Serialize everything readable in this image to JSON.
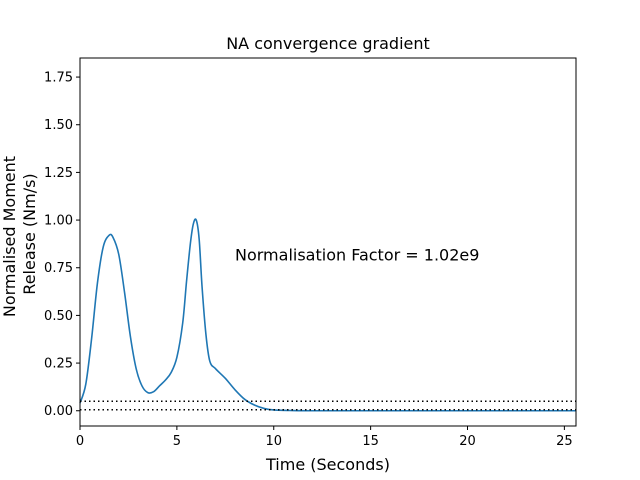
{
  "chart_data": {
    "type": "line",
    "title": "NA convergence gradient",
    "xlabel": "Time (Seconds)",
    "ylabel_lines": [
      "Normalised Moment",
      "Release (Nm/s)"
    ],
    "xlim": [
      0,
      25.6
    ],
    "ylim": [
      -0.08,
      1.85
    ],
    "xticks": [
      0,
      5,
      10,
      15,
      20,
      25
    ],
    "yticks": [
      0.0,
      0.25,
      0.5,
      0.75,
      1.0,
      1.25,
      1.5,
      1.75
    ],
    "ytick_labels": [
      "0.00",
      "0.25",
      "0.50",
      "0.75",
      "1.00",
      "1.25",
      "1.50",
      "1.75"
    ],
    "annotation": {
      "text": "Normalisation Factor = 1.02e9",
      "x": 8.0,
      "y": 0.82
    },
    "series": [
      {
        "color": "#1f77b4",
        "style": "solid",
        "x": [
          0,
          0.3,
          0.6,
          0.9,
          1.2,
          1.5,
          1.7,
          2.0,
          2.3,
          2.6,
          2.9,
          3.2,
          3.5,
          3.8,
          4.1,
          4.4,
          4.7,
          5.0,
          5.3,
          5.5,
          5.7,
          5.85,
          6.0,
          6.15,
          6.3,
          6.5,
          6.7,
          7.0,
          7.5,
          8.0,
          8.5,
          9.0,
          9.5,
          10.0,
          11.0,
          12.0,
          14.0,
          18.0,
          22.0,
          25.6
        ],
        "y": [
          0.04,
          0.14,
          0.38,
          0.67,
          0.86,
          0.92,
          0.91,
          0.82,
          0.62,
          0.39,
          0.22,
          0.13,
          0.095,
          0.1,
          0.13,
          0.16,
          0.2,
          0.28,
          0.46,
          0.68,
          0.88,
          0.98,
          1.0,
          0.9,
          0.65,
          0.4,
          0.26,
          0.22,
          0.17,
          0.11,
          0.06,
          0.03,
          0.012,
          0.004,
          0.001,
          0.0,
          0.0,
          0.0,
          0.0,
          0.0
        ]
      },
      {
        "color": "#000000",
        "style": "dotted",
        "x": [
          0,
          25.6
        ],
        "y": [
          0.05,
          0.05
        ]
      },
      {
        "color": "#000000",
        "style": "dotted",
        "x": [
          0,
          25.6
        ],
        "y": [
          0.005,
          0.005
        ]
      }
    ]
  }
}
